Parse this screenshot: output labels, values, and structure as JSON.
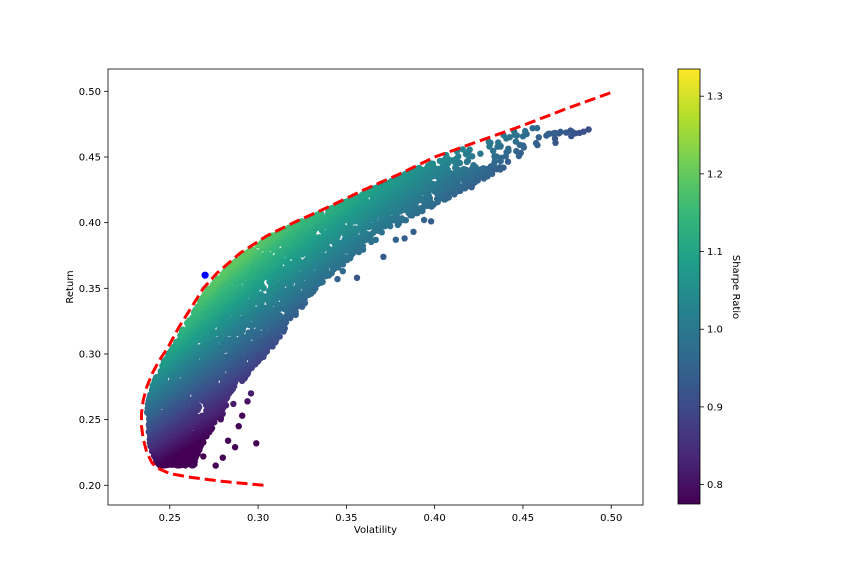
{
  "chart_data": {
    "type": "scatter",
    "title": "",
    "xlabel": "Volatility",
    "ylabel": "Return",
    "xlim": [
      0.215,
      0.518
    ],
    "ylim": [
      0.185,
      0.517
    ],
    "x_ticks": [
      {
        "value": 0.25,
        "label": "0.25"
      },
      {
        "value": 0.3,
        "label": "0.30"
      },
      {
        "value": 0.35,
        "label": "0.35"
      },
      {
        "value": 0.4,
        "label": "0.40"
      },
      {
        "value": 0.45,
        "label": "0.45"
      },
      {
        "value": 0.5,
        "label": "0.50"
      }
    ],
    "y_ticks": [
      {
        "value": 0.2,
        "label": "0.20"
      },
      {
        "value": 0.25,
        "label": "0.25"
      },
      {
        "value": 0.3,
        "label": "0.30"
      },
      {
        "value": 0.35,
        "label": "0.35"
      },
      {
        "value": 0.4,
        "label": "0.40"
      },
      {
        "value": 0.45,
        "label": "0.45"
      },
      {
        "value": 0.5,
        "label": "0.50"
      }
    ],
    "grid": false,
    "colormap": "viridis",
    "colorbar": {
      "label": "Sharpe Ratio",
      "range": [
        0.775,
        1.335
      ],
      "ticks": [
        {
          "value": 0.8,
          "label": "0.8"
        },
        {
          "value": 0.9,
          "label": "0.9"
        },
        {
          "value": 1.0,
          "label": "1.0"
        },
        {
          "value": 1.1,
          "label": "1.1"
        },
        {
          "value": 1.2,
          "label": "1.2"
        },
        {
          "value": 1.3,
          "label": "1.3"
        }
      ]
    },
    "scatter_cloud": {
      "description_values": "simulated portfolios, return range and volatility band",
      "return_min": 0.215,
      "return_max": 0.472,
      "frontier_offset": 0.003
    },
    "outlier_points": [
      {
        "x": 0.283,
        "y": 0.234
      },
      {
        "x": 0.287,
        "y": 0.229
      },
      {
        "x": 0.299,
        "y": 0.232
      },
      {
        "x": 0.28,
        "y": 0.221
      },
      {
        "x": 0.276,
        "y": 0.215
      },
      {
        "x": 0.289,
        "y": 0.245
      },
      {
        "x": 0.291,
        "y": 0.253
      },
      {
        "x": 0.294,
        "y": 0.264
      },
      {
        "x": 0.296,
        "y": 0.27
      },
      {
        "x": 0.286,
        "y": 0.262
      },
      {
        "x": 0.3,
        "y": 0.299
      },
      {
        "x": 0.305,
        "y": 0.31
      },
      {
        "x": 0.321,
        "y": 0.334
      },
      {
        "x": 0.325,
        "y": 0.336
      },
      {
        "x": 0.345,
        "y": 0.357
      },
      {
        "x": 0.348,
        "y": 0.363
      },
      {
        "x": 0.371,
        "y": 0.374
      },
      {
        "x": 0.378,
        "y": 0.387
      },
      {
        "x": 0.383,
        "y": 0.388
      },
      {
        "x": 0.388,
        "y": 0.393
      },
      {
        "x": 0.394,
        "y": 0.402
      },
      {
        "x": 0.398,
        "y": 0.401
      },
      {
        "x": 0.407,
        "y": 0.427
      },
      {
        "x": 0.41,
        "y": 0.434
      },
      {
        "x": 0.413,
        "y": 0.431
      },
      {
        "x": 0.418,
        "y": 0.432
      },
      {
        "x": 0.421,
        "y": 0.427
      },
      {
        "x": 0.424,
        "y": 0.435
      },
      {
        "x": 0.431,
        "y": 0.458
      },
      {
        "x": 0.436,
        "y": 0.461
      },
      {
        "x": 0.434,
        "y": 0.45
      },
      {
        "x": 0.437,
        "y": 0.441
      },
      {
        "x": 0.458,
        "y": 0.472
      },
      {
        "x": 0.459,
        "y": 0.465
      },
      {
        "x": 0.392,
        "y": 0.436
      },
      {
        "x": 0.398,
        "y": 0.445
      },
      {
        "x": 0.403,
        "y": 0.447
      },
      {
        "x": 0.401,
        "y": 0.438
      },
      {
        "x": 0.405,
        "y": 0.442
      },
      {
        "x": 0.396,
        "y": 0.428
      },
      {
        "x": 0.356,
        "y": 0.358
      },
      {
        "x": 0.269,
        "y": 0.222
      },
      {
        "x": 0.261,
        "y": 0.218
      }
    ],
    "max_sharpe_point": {
      "x": 0.27,
      "y": 0.36,
      "color": "#0000ff"
    },
    "frontier": {
      "color": "#ff0000",
      "style": "dashed",
      "points": [
        {
          "x": 0.303,
          "y": 0.2
        },
        {
          "x": 0.28,
          "y": 0.203
        },
        {
          "x": 0.262,
          "y": 0.206
        },
        {
          "x": 0.25,
          "y": 0.209
        },
        {
          "x": 0.243,
          "y": 0.213
        },
        {
          "x": 0.24,
          "y": 0.217
        },
        {
          "x": 0.237,
          "y": 0.225
        },
        {
          "x": 0.235,
          "y": 0.235
        },
        {
          "x": 0.234,
          "y": 0.245
        },
        {
          "x": 0.234,
          "y": 0.255
        },
        {
          "x": 0.235,
          "y": 0.265
        },
        {
          "x": 0.237,
          "y": 0.275
        },
        {
          "x": 0.24,
          "y": 0.285
        },
        {
          "x": 0.244,
          "y": 0.295
        },
        {
          "x": 0.249,
          "y": 0.305
        },
        {
          "x": 0.255,
          "y": 0.32
        },
        {
          "x": 0.262,
          "y": 0.335
        },
        {
          "x": 0.269,
          "y": 0.35
        },
        {
          "x": 0.277,
          "y": 0.362
        },
        {
          "x": 0.29,
          "y": 0.377
        },
        {
          "x": 0.305,
          "y": 0.39
        },
        {
          "x": 0.32,
          "y": 0.4
        },
        {
          "x": 0.34,
          "y": 0.412
        },
        {
          "x": 0.36,
          "y": 0.425
        },
        {
          "x": 0.38,
          "y": 0.437
        },
        {
          "x": 0.4,
          "y": 0.45
        },
        {
          "x": 0.425,
          "y": 0.462
        },
        {
          "x": 0.45,
          "y": 0.474
        },
        {
          "x": 0.475,
          "y": 0.487
        },
        {
          "x": 0.502,
          "y": 0.5
        }
      ]
    }
  }
}
